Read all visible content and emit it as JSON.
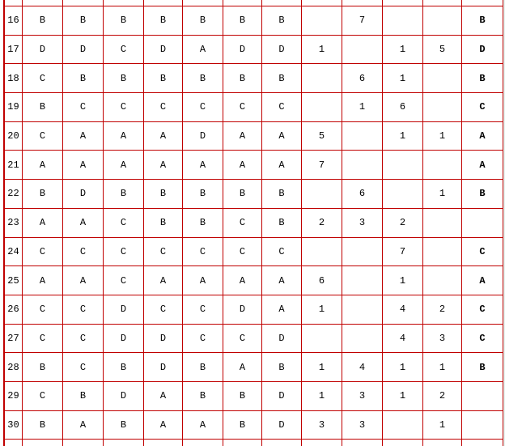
{
  "table": {
    "grid_line_color": "#c00000",
    "cell_background": "#ffffff",
    "text_color": "#000000",
    "columns": {
      "row_number": 1,
      "choice_columns": 7,
      "count_columns": 4,
      "answer_columns": 1
    },
    "rows": [
      {
        "num": "16",
        "choices": [
          "B",
          "B",
          "B",
          "B",
          "B",
          "B",
          "B"
        ],
        "counts": [
          "",
          "7",
          "",
          ""
        ],
        "answer": "B"
      },
      {
        "num": "17",
        "choices": [
          "D",
          "D",
          "C",
          "D",
          "A",
          "D",
          "D"
        ],
        "counts": [
          "1",
          "",
          "1",
          "5"
        ],
        "answer": "D"
      },
      {
        "num": "18",
        "choices": [
          "C",
          "B",
          "B",
          "B",
          "B",
          "B",
          "B"
        ],
        "counts": [
          "",
          "6",
          "1",
          ""
        ],
        "answer": "B"
      },
      {
        "num": "19",
        "choices": [
          "B",
          "C",
          "C",
          "C",
          "C",
          "C",
          "C"
        ],
        "counts": [
          "",
          "1",
          "6",
          ""
        ],
        "answer": "C"
      },
      {
        "num": "20",
        "choices": [
          "C",
          "A",
          "A",
          "A",
          "D",
          "A",
          "A"
        ],
        "counts": [
          "5",
          "",
          "1",
          "1"
        ],
        "answer": "A"
      },
      {
        "num": "21",
        "choices": [
          "A",
          "A",
          "A",
          "A",
          "A",
          "A",
          "A"
        ],
        "counts": [
          "7",
          "",
          "",
          ""
        ],
        "answer": "A"
      },
      {
        "num": "22",
        "choices": [
          "B",
          "D",
          "B",
          "B",
          "B",
          "B",
          "B"
        ],
        "counts": [
          "",
          "6",
          "",
          "1"
        ],
        "answer": "B"
      },
      {
        "num": "23",
        "choices": [
          "A",
          "A",
          "C",
          "B",
          "B",
          "C",
          "B"
        ],
        "counts": [
          "2",
          "3",
          "2",
          ""
        ],
        "answer": ""
      },
      {
        "num": "24",
        "choices": [
          "C",
          "C",
          "C",
          "C",
          "C",
          "C",
          "C"
        ],
        "counts": [
          "",
          "",
          "7",
          ""
        ],
        "answer": "C"
      },
      {
        "num": "25",
        "choices": [
          "A",
          "A",
          "C",
          "A",
          "A",
          "A",
          "A"
        ],
        "counts": [
          "6",
          "",
          "1",
          ""
        ],
        "answer": "A"
      },
      {
        "num": "26",
        "choices": [
          "C",
          "C",
          "D",
          "C",
          "C",
          "D",
          "A"
        ],
        "counts": [
          "1",
          "",
          "4",
          "2"
        ],
        "answer": "C"
      },
      {
        "num": "27",
        "choices": [
          "C",
          "C",
          "D",
          "D",
          "C",
          "C",
          "D"
        ],
        "counts": [
          "",
          "",
          "4",
          "3"
        ],
        "answer": "C"
      },
      {
        "num": "28",
        "choices": [
          "B",
          "C",
          "B",
          "D",
          "B",
          "A",
          "B"
        ],
        "counts": [
          "1",
          "4",
          "1",
          "1"
        ],
        "answer": "B"
      },
      {
        "num": "29",
        "choices": [
          "C",
          "B",
          "D",
          "A",
          "B",
          "B",
          "D"
        ],
        "counts": [
          "1",
          "3",
          "1",
          "2"
        ],
        "answer": ""
      },
      {
        "num": "30",
        "choices": [
          "B",
          "A",
          "B",
          "A",
          "A",
          "B",
          "D"
        ],
        "counts": [
          "3",
          "3",
          "",
          "1"
        ],
        "answer": ""
      }
    ]
  }
}
